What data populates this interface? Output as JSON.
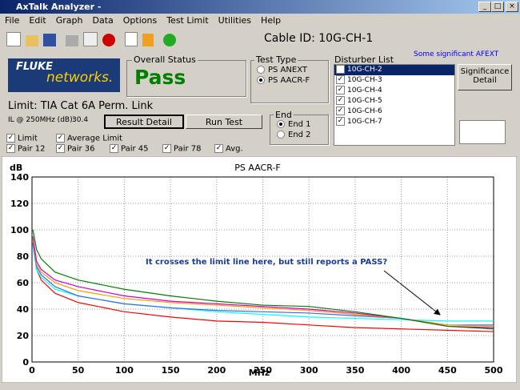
{
  "window": {
    "title": "AxTalk Analyzer -"
  },
  "menu": [
    "File",
    "Edit",
    "Graph",
    "Data",
    "Options",
    "Test Limit",
    "Utilities",
    "Help"
  ],
  "cable_id": "Cable ID: 10G-CH-1",
  "logo": {
    "brand": "FLUKE",
    "sub": "networks."
  },
  "overall_status": {
    "label": "Overall Status",
    "value": "Pass"
  },
  "test_type": {
    "label": "Test Type",
    "options": [
      "PS ANEXT",
      "PS AACR-F"
    ]
  },
  "disturber": {
    "label": "Disturber List",
    "note": "Some significant AFEXT",
    "items": [
      "10G-CH-2",
      "10G-CH-3",
      "10G-CH-4",
      "10G-CH-5",
      "10G-CH-6",
      "10G-CH-7"
    ],
    "button": "Significance Detail"
  },
  "limit": {
    "text": "Limit: TIA Cat 6A Perm. Link",
    "il_label": "IL @ 250MHz (dB):",
    "il_value": 30.4
  },
  "buttons": [
    "Result Detail",
    "Run Test"
  ],
  "end": {
    "label": "End",
    "options": [
      "End 1",
      "End 2"
    ]
  },
  "checkboxes": [
    "Limit",
    "Average Limit",
    "Pair 12",
    "Pair 36",
    "Pair 45",
    "Pair 78",
    "Avg."
  ],
  "chart_data": {
    "type": "line",
    "title": "PS AACR-F",
    "y_label": "dB",
    "x_label": "MHz",
    "annotation": "It crosses the limit line here, but still reports a PASS?",
    "xlim": [
      0,
      500
    ],
    "ylim": [
      0,
      140
    ],
    "xticks": [
      0,
      50,
      100,
      150,
      200,
      250,
      300,
      350,
      400,
      450,
      500
    ],
    "yticks": [
      0,
      20,
      40,
      60,
      80,
      100,
      120,
      140
    ],
    "grid": true,
    "x": [
      1,
      5,
      10,
      25,
      50,
      100,
      150,
      200,
      250,
      300,
      350,
      400,
      450,
      500
    ],
    "series": [
      {
        "color": "#ff0000",
        "values": [
          90,
          70,
          62,
          52,
          45,
          38,
          34,
          31,
          30,
          28,
          26,
          25,
          24,
          23
        ]
      },
      {
        "color": "#00ffff",
        "values": [
          88,
          70,
          64,
          55,
          50,
          44,
          41,
          38,
          36,
          34,
          33,
          32,
          31,
          31
        ]
      },
      {
        "color": "#3070e0",
        "values": [
          90,
          72,
          66,
          57,
          50,
          44,
          41,
          39,
          38,
          37,
          35,
          33,
          28,
          28
        ]
      },
      {
        "color": "#ff9900",
        "values": [
          93,
          74,
          68,
          60,
          54,
          48,
          45,
          43,
          41,
          39,
          36,
          33,
          28,
          27
        ]
      },
      {
        "color": "#cc00cc",
        "values": [
          95,
          76,
          70,
          62,
          57,
          50,
          46,
          44,
          42,
          40,
          37,
          33,
          27,
          26
        ]
      },
      {
        "color": "#008000",
        "values": [
          100,
          85,
          78,
          68,
          62,
          55,
          50,
          46,
          43,
          42,
          38,
          33,
          27,
          25
        ]
      }
    ]
  }
}
